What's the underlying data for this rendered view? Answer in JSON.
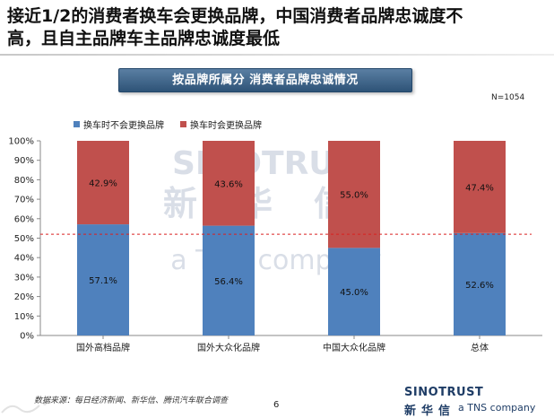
{
  "slide": {
    "headline": "接近1/2的消费者换车会更换品牌，中国消费者品牌忠诚度不\n高，且自主品牌车主品牌忠诚度最低",
    "banner": "按品牌所属分   消费者品牌忠诚情况",
    "sample": "N=1054",
    "source": "数据来源：每日经济新闻、新华信、腾讯汽车联合调查",
    "page": "6",
    "logo_word": "SINOTRUST",
    "logo_cn": "新华信",
    "logo_tns": "a TNS company"
  },
  "chart_data": {
    "type": "bar",
    "stacked": true,
    "categories": [
      "国外高档品牌",
      "国外大众化品牌",
      "中国大众化品牌",
      "总体"
    ],
    "series": [
      {
        "name": "换车时不会更换品牌",
        "color": "#4f81bd",
        "values": [
          57.1,
          56.4,
          45.0,
          52.6
        ],
        "labels": [
          "57.1%",
          "56.4%",
          "45.0%",
          "52.6%"
        ]
      },
      {
        "name": "换车时会更换品牌",
        "color": "#c0504d",
        "values": [
          42.9,
          43.6,
          55.0,
          47.4
        ],
        "labels": [
          "42.9%",
          "43.6%",
          "55.0%",
          "47.4%"
        ]
      }
    ],
    "ylim": [
      0,
      100
    ],
    "yticks": [
      0,
      10,
      20,
      30,
      40,
      50,
      60,
      70,
      80,
      90,
      100
    ],
    "ytick_labels": [
      "0%",
      "10%",
      "20%",
      "30%",
      "40%",
      "50%",
      "60%",
      "70%",
      "80%",
      "90%",
      "100%"
    ],
    "reference_line": 52,
    "legend_position": "top-left",
    "grid": false
  }
}
